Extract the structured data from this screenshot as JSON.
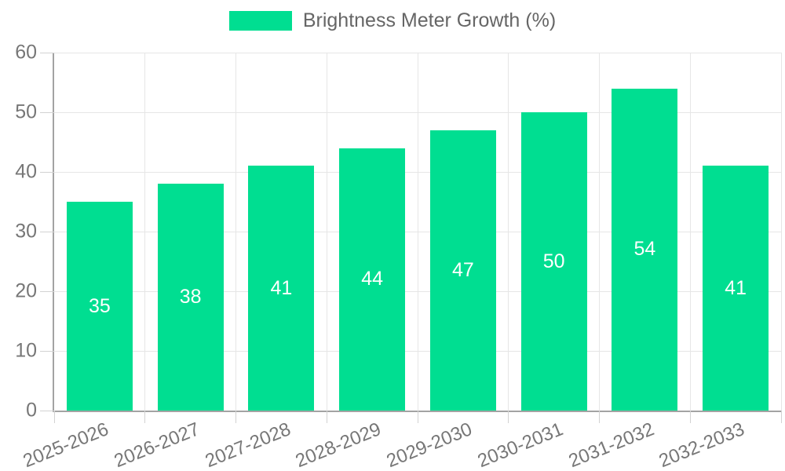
{
  "legend": {
    "label": "Brightness Meter Growth (%)",
    "swatch_color": "#00de91"
  },
  "chart_data": {
    "type": "bar",
    "title": "Brightness Meter Growth (%)",
    "categories": [
      "2025-2026",
      "2026-2027",
      "2027-2028",
      "2028-2029",
      "2029-2030",
      "2030-2031",
      "2031-2032",
      "2032-2033"
    ],
    "values": [
      35,
      38,
      41,
      44,
      47,
      50,
      54,
      41
    ],
    "xlabel": "",
    "ylabel": "",
    "ylim": [
      0,
      60
    ],
    "yticks": [
      0,
      10,
      20,
      30,
      40,
      50,
      60
    ],
    "grid": true,
    "legend_position": "top",
    "bar_color": "#00de91",
    "value_label_color": "#ffffff",
    "tick_label_color": "#777777",
    "legend_text_color": "#666666",
    "grid_color": "#e6e6e6",
    "axis_color": "#a3a3a3"
  }
}
